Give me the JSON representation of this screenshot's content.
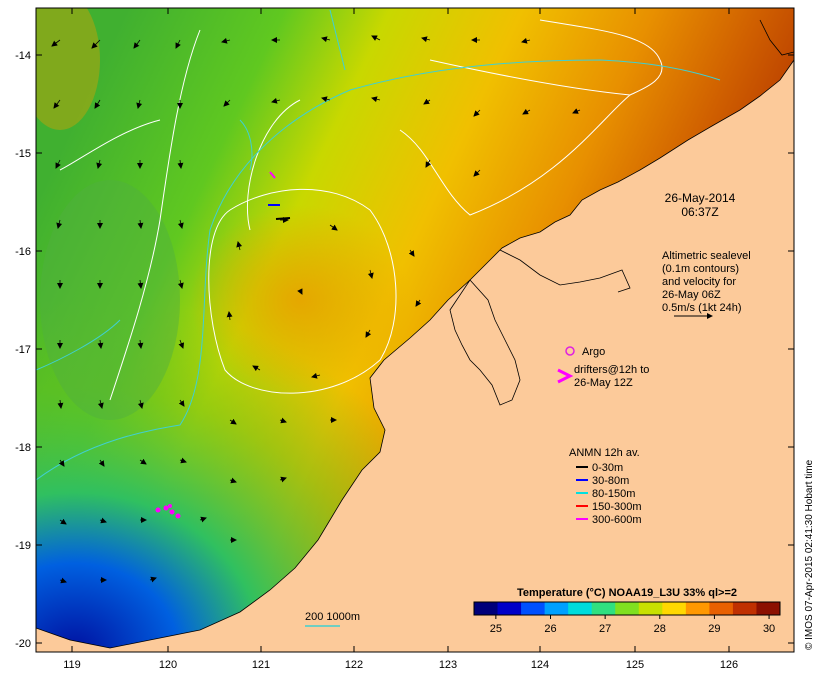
{
  "map": {
    "lon_ticks": [
      "119",
      "120",
      "121",
      "122",
      "123",
      "124",
      "125",
      "126"
    ],
    "lat_ticks": [
      "-14",
      "-15",
      "-16",
      "-17",
      "-18",
      "-19",
      "-20"
    ],
    "timestamp_date": "26-May-2014",
    "timestamp_time": "06:37Z",
    "altimetry_note": [
      "Altimetric sealevel",
      "(0.1m contours)",
      "and velocity for",
      "26-May 06Z",
      "0.5m/s (1kt 24h)"
    ],
    "argo_label": "Argo",
    "drifters_label_line1": "drifters@12h to",
    "drifters_label_line2": "26-May 12Z",
    "bathy_label": "200  1000m",
    "credit": "© IMOS 07-Apr-2015 02:41:30 Hobart time",
    "colors": {
      "land": "#FCCA9A",
      "argo": "#E020E0",
      "drifter": "#FF00FF",
      "bathy": "#40D0D0"
    }
  },
  "anmn_legend": {
    "title": "ANMN 12h av.",
    "items": [
      {
        "label": "0-30m",
        "color": "#000000"
      },
      {
        "label": "30-80m",
        "color": "#0000FF"
      },
      {
        "label": "80-150m",
        "color": "#00E0E0"
      },
      {
        "label": "150-300m",
        "color": "#FF0000"
      },
      {
        "label": "300-600m",
        "color": "#FF00FF"
      }
    ]
  },
  "colorbar": {
    "title": "Temperature (°C) NOAA19_L3U 33% ql>=2",
    "ticks": [
      "25",
      "26",
      "27",
      "28",
      "29",
      "30"
    ],
    "range": [
      24.6,
      30.2
    ],
    "stops": [
      "#00007A",
      "#0000C8",
      "#0050FF",
      "#00A0FF",
      "#00DCDC",
      "#30E080",
      "#80E020",
      "#C8E000",
      "#FFD800",
      "#FF9800",
      "#E86000",
      "#C03000",
      "#8C1000"
    ]
  }
}
